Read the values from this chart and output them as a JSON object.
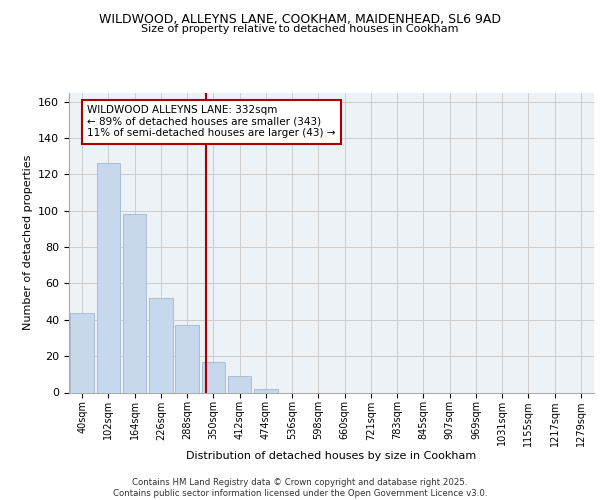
{
  "title_line1": "WILDWOOD, ALLEYNS LANE, COOKHAM, MAIDENHEAD, SL6 9AD",
  "title_line2": "Size of property relative to detached houses in Cookham",
  "xlabel": "Distribution of detached houses by size in Cookham",
  "ylabel": "Number of detached properties",
  "categories": [
    "40sqm",
    "102sqm",
    "164sqm",
    "226sqm",
    "288sqm",
    "350sqm",
    "412sqm",
    "474sqm",
    "536sqm",
    "598sqm",
    "660sqm",
    "721sqm",
    "783sqm",
    "845sqm",
    "907sqm",
    "969sqm",
    "1031sqm",
    "1155sqm",
    "1217sqm",
    "1279sqm"
  ],
  "values": [
    44,
    126,
    98,
    52,
    37,
    17,
    9,
    2,
    0,
    0,
    0,
    0,
    0,
    0,
    0,
    0,
    0,
    0,
    0,
    0
  ],
  "bar_color": "#c8d8ec",
  "bar_edge_color": "#aabdd4",
  "vline_color": "#aa0000",
  "annotation_text": "WILDWOOD ALLEYNS LANE: 332sqm\n← 89% of detached houses are smaller (343)\n11% of semi-detached houses are larger (43) →",
  "box_edge_color": "#aa0000",
  "footer_line1": "Contains HM Land Registry data © Crown copyright and database right 2025.",
  "footer_line2": "Contains public sector information licensed under the Open Government Licence v3.0.",
  "ylim": [
    0,
    165
  ],
  "yticks": [
    0,
    20,
    40,
    60,
    80,
    100,
    120,
    140,
    160
  ],
  "grid_color": "#cccccc",
  "bg_color": "#edf2f7"
}
